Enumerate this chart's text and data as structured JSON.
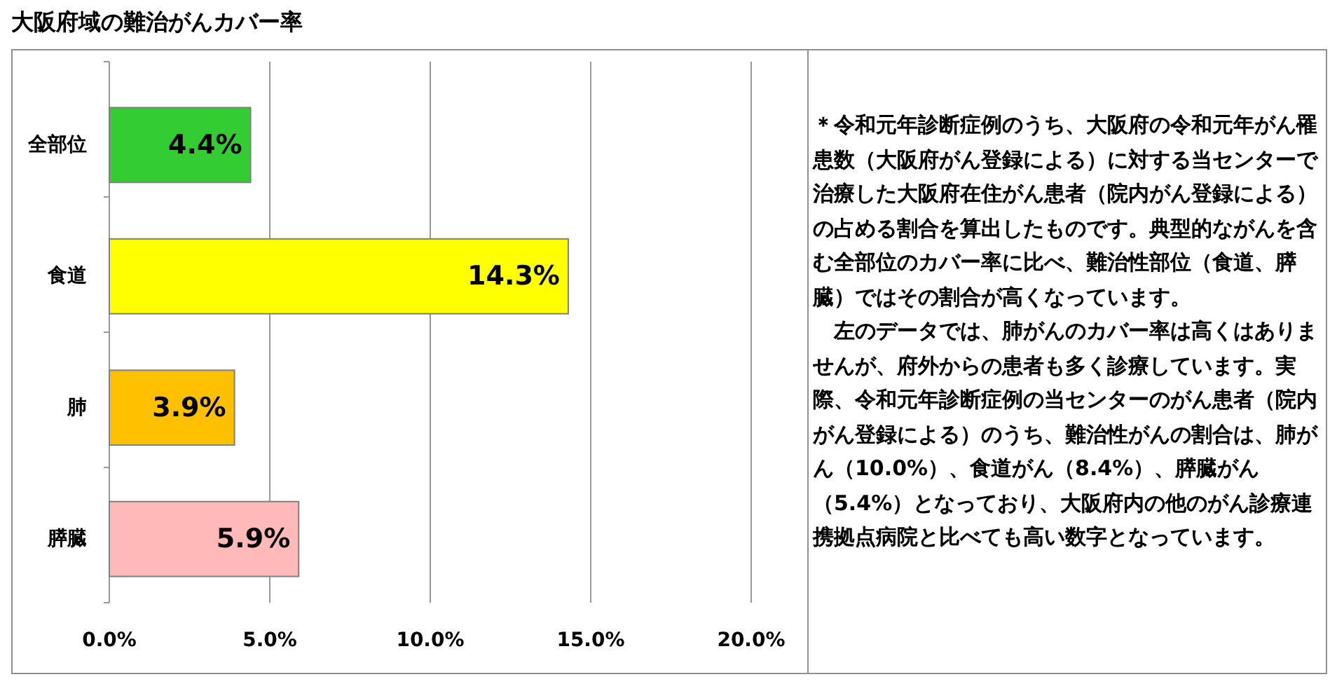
{
  "chart_data": {
    "type": "bar",
    "orientation": "horizontal",
    "title": "大阪府域の難治がんカバー率",
    "categories": [
      "全部位",
      "食道",
      "肺",
      "膵臓"
    ],
    "values": [
      4.4,
      14.3,
      3.9,
      5.9
    ],
    "colors": [
      "#33cc33",
      "#ffff00",
      "#ffc000",
      "#ffb9b9"
    ],
    "value_labels": [
      "4.4%",
      "14.3%",
      "3.9%",
      "5.9%"
    ],
    "xlim": [
      0,
      20
    ],
    "xticks": [
      {
        "value": 0,
        "label": "0.0%"
      },
      {
        "value": 5,
        "label": "5.0%"
      },
      {
        "value": 10,
        "label": "10.0%"
      },
      {
        "value": 15,
        "label": "15.0%"
      },
      {
        "value": 20,
        "label": "20.0%"
      }
    ],
    "grid": "x",
    "annotations": [
      "＊令和元年診断症例のうち、大阪府の令和元年がん罹患数（大阪府がん登録による）に対する当センターで治療した大阪府在住がん患者（院内がん登録による）の占める割合を算出したものです。典型的ながんを含む全部位のカバー率に比べ、難治性部位（食道、膵臓）ではその割合が高くなっています。",
      "　左のデータでは、肺がんのカバー率は高くはありませんが、府外からの患者も多く診療しています。実際、令和元年診断症例の当センターのがん患者（院内がん登録による）のうち、難治性がんの割合は、肺がん（10.0%）、食道がん（8.4%）、膵臓がん（5.4%）となっており、大阪府内の他のがん診療連携拠点病院と比べても高い数字となっています。"
    ]
  }
}
